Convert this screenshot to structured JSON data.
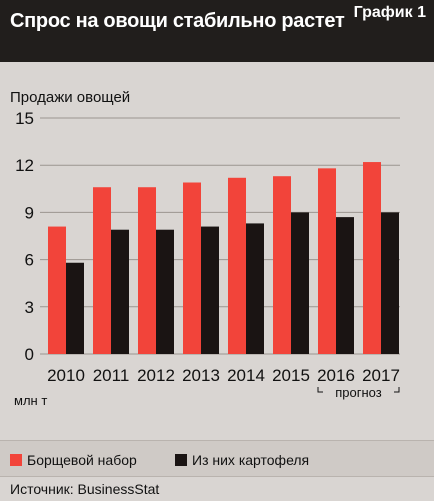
{
  "header": {
    "title": "Спрос на овощи стабильно растет",
    "tag": "График 1"
  },
  "chart_data": {
    "type": "bar",
    "title": "Спрос на овощи стабильно растет",
    "ylabel": "Продажи овощей",
    "unit_label": "млн т",
    "forecast_label": "прогноз",
    "ylim": [
      0,
      15
    ],
    "yticks": [
      0,
      3,
      6,
      9,
      12,
      15
    ],
    "categories": [
      "2010",
      "2011",
      "2012",
      "2013",
      "2014",
      "2015",
      "2016",
      "2017"
    ],
    "forecast_categories": [
      "2016",
      "2017"
    ],
    "grid": true,
    "legend_position": "bottom",
    "series": [
      {
        "name": "Борщевой набор",
        "color": "#f2443a",
        "values": [
          8.1,
          10.6,
          10.6,
          10.9,
          11.2,
          11.3,
          11.8,
          12.2
        ]
      },
      {
        "name": "Из них картофеля",
        "color": "#1a1413",
        "values": [
          5.8,
          7.9,
          7.9,
          8.1,
          8.3,
          9.0,
          8.7,
          9.0
        ]
      }
    ]
  },
  "footer": {
    "source": "Источник: BusinessStat"
  }
}
